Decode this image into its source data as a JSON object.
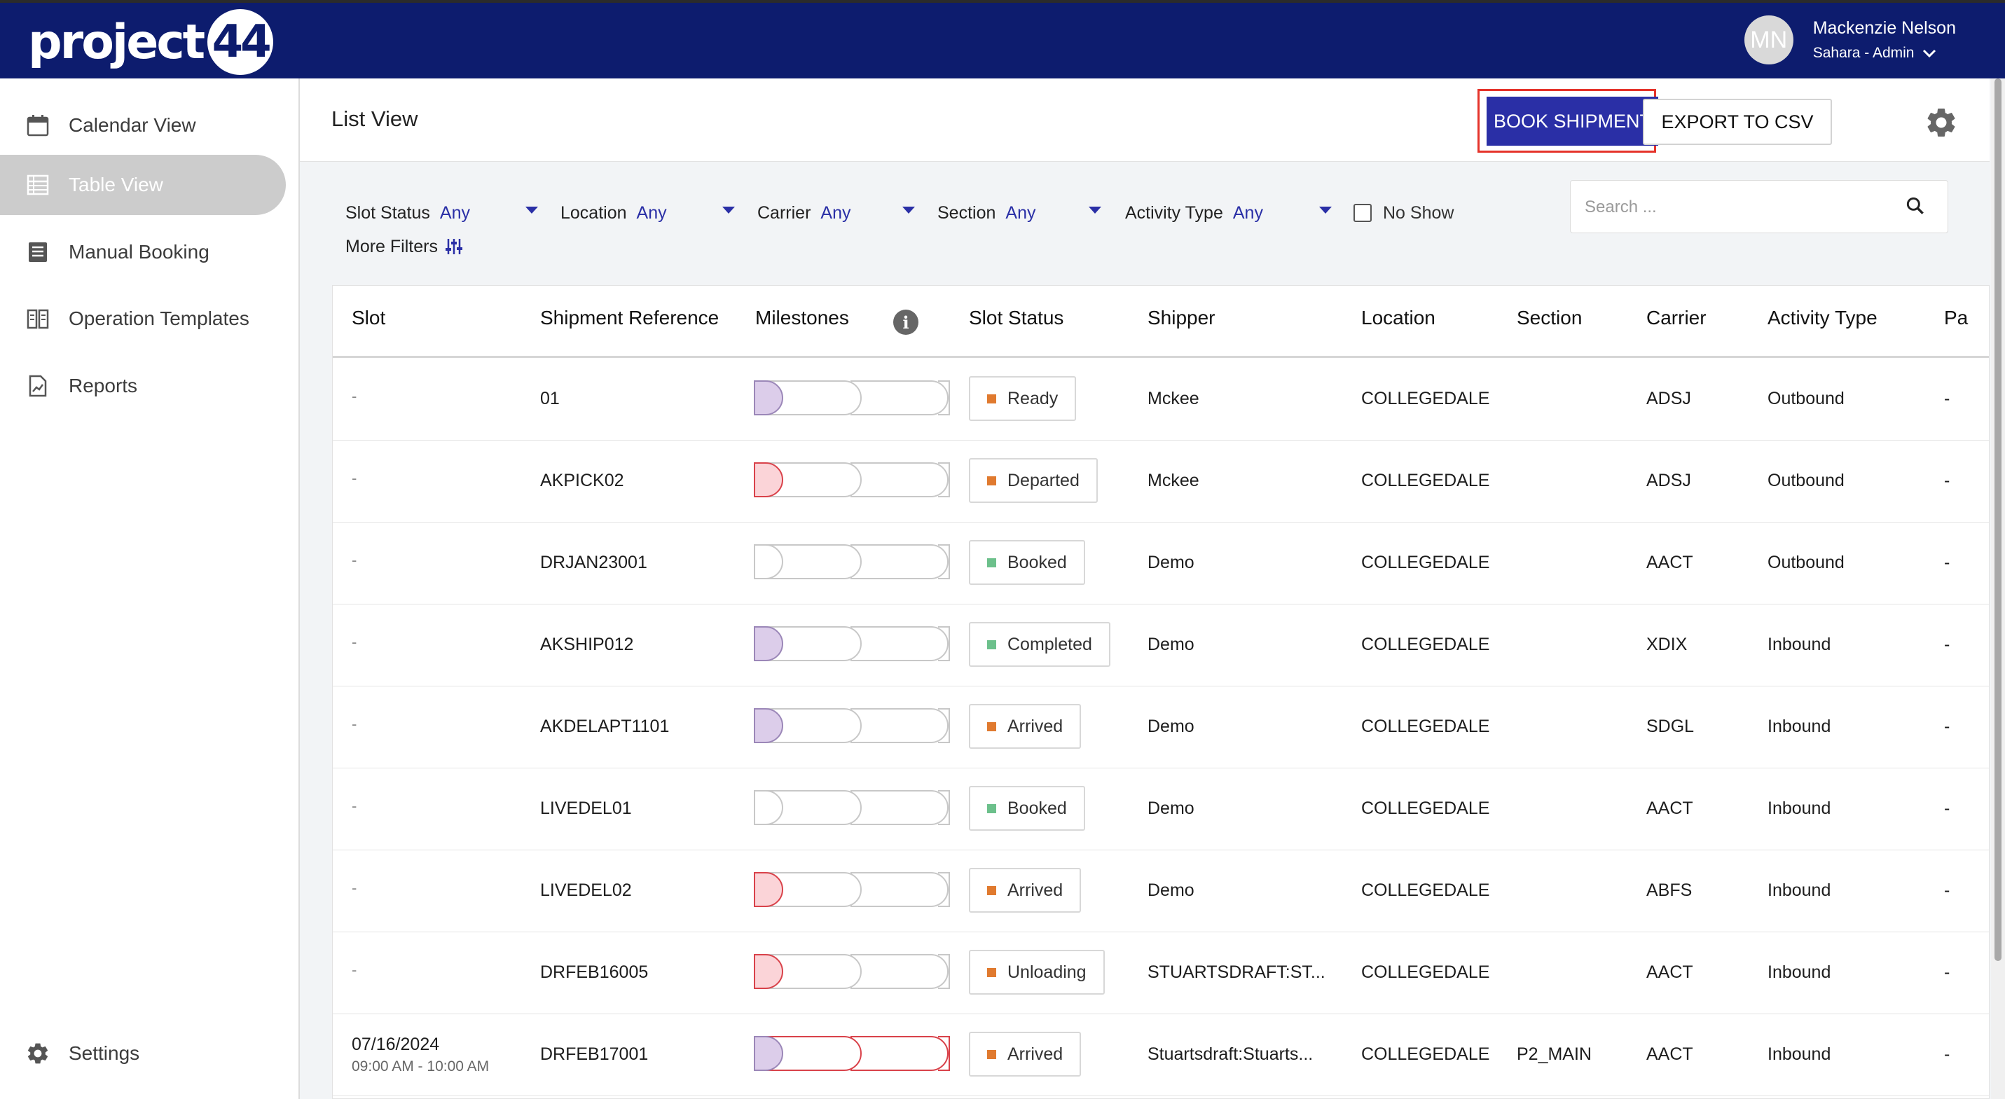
{
  "app": {
    "logo_text": "project",
    "logo_number": "44"
  },
  "user": {
    "initials": "MN",
    "name": "Mackenzie Nelson",
    "role": "Sahara - Admin"
  },
  "sidebar": {
    "items": [
      {
        "label": "Calendar View",
        "icon": "calendar-icon"
      },
      {
        "label": "Table View",
        "icon": "table-icon",
        "active": true
      },
      {
        "label": "Manual Booking",
        "icon": "document-list-icon"
      },
      {
        "label": "Operation Templates",
        "icon": "book-icon"
      },
      {
        "label": "Reports",
        "icon": "report-icon"
      }
    ],
    "settings_label": "Settings"
  },
  "header": {
    "title": "List View",
    "book_label": "BOOK SHIPMENT",
    "export_label": "EXPORT TO CSV"
  },
  "filters": {
    "slot_status": {
      "label": "Slot Status",
      "value": "Any"
    },
    "location": {
      "label": "Location",
      "value": "Any"
    },
    "carrier": {
      "label": "Carrier",
      "value": "Any"
    },
    "section": {
      "label": "Section",
      "value": "Any"
    },
    "activity_type": {
      "label": "Activity Type",
      "value": "Any"
    },
    "no_show_label": "No Show",
    "more_filters_label": "More Filters",
    "search_placeholder": "Search ..."
  },
  "table": {
    "columns": [
      "Slot",
      "Shipment Reference",
      "Milestones",
      "Slot Status",
      "Shipper",
      "Location",
      "Section",
      "Carrier",
      "Activity Type",
      "Pa"
    ],
    "rows": [
      {
        "slot": "-",
        "slot_time": "",
        "ref": "01",
        "milestone": "purple",
        "status": "Ready",
        "status_color": "#e07a2f",
        "shipper": "Mckee",
        "location": "COLLEGEDALE",
        "section": "",
        "carrier": "ADSJ",
        "activity": "Outbound",
        "pa": "-"
      },
      {
        "slot": "-",
        "slot_time": "",
        "ref": "AKPICK02",
        "milestone": "red",
        "status": "Departed",
        "status_color": "#e07a2f",
        "shipper": "Mckee",
        "location": "COLLEGEDALE",
        "section": "",
        "carrier": "ADSJ",
        "activity": "Outbound",
        "pa": "-"
      },
      {
        "slot": "-",
        "slot_time": "",
        "ref": "DRJAN23001",
        "milestone": "none",
        "status": "Booked",
        "status_color": "#6cc08b",
        "shipper": "Demo",
        "location": "COLLEGEDALE",
        "section": "",
        "carrier": "AACT",
        "activity": "Outbound",
        "pa": "-"
      },
      {
        "slot": "-",
        "slot_time": "",
        "ref": "AKSHIP012",
        "milestone": "purple",
        "status": "Completed",
        "status_color": "#6cc08b",
        "shipper": "Demo",
        "location": "COLLEGEDALE",
        "section": "",
        "carrier": "XDIX",
        "activity": "Inbound",
        "pa": "-"
      },
      {
        "slot": "-",
        "slot_time": "",
        "ref": "AKDELAPT1101",
        "milestone": "purple",
        "status": "Arrived",
        "status_color": "#e07a2f",
        "shipper": "Demo",
        "location": "COLLEGEDALE",
        "section": "",
        "carrier": "SDGL",
        "activity": "Inbound",
        "pa": "-"
      },
      {
        "slot": "-",
        "slot_time": "",
        "ref": "LIVEDEL01",
        "milestone": "none",
        "status": "Booked",
        "status_color": "#6cc08b",
        "shipper": "Demo",
        "location": "COLLEGEDALE",
        "section": "",
        "carrier": "AACT",
        "activity": "Inbound",
        "pa": "-"
      },
      {
        "slot": "-",
        "slot_time": "",
        "ref": "LIVEDEL02",
        "milestone": "red",
        "status": "Arrived",
        "status_color": "#e07a2f",
        "shipper": "Demo",
        "location": "COLLEGEDALE",
        "section": "",
        "carrier": "ABFS",
        "activity": "Inbound",
        "pa": "-"
      },
      {
        "slot": "-",
        "slot_time": "",
        "ref": "DRFEB16005",
        "milestone": "red",
        "status": "Unloading",
        "status_color": "#e07a2f",
        "shipper": "STUARTSDRAFT:ST...",
        "location": "COLLEGEDALE",
        "section": "",
        "carrier": "AACT",
        "activity": "Inbound",
        "pa": "-"
      },
      {
        "slot": "07/16/2024",
        "slot_time": "09:00 AM - 10:00 AM",
        "ref": "DRFEB17001",
        "milestone": "purple-red",
        "status": "Arrived",
        "status_color": "#e07a2f",
        "shipper": "Stuartsdraft:Stuarts...",
        "location": "COLLEGEDALE",
        "section": "P2_MAIN",
        "carrier": "AACT",
        "activity": "Inbound",
        "pa": "-"
      }
    ]
  },
  "colors": {
    "topbar": "#0d1c6e",
    "accent": "#2a2fa6",
    "highlight_outline": "#e5332a",
    "milestone_purple": "#dccdea",
    "milestone_red": "#fbd4d8"
  }
}
